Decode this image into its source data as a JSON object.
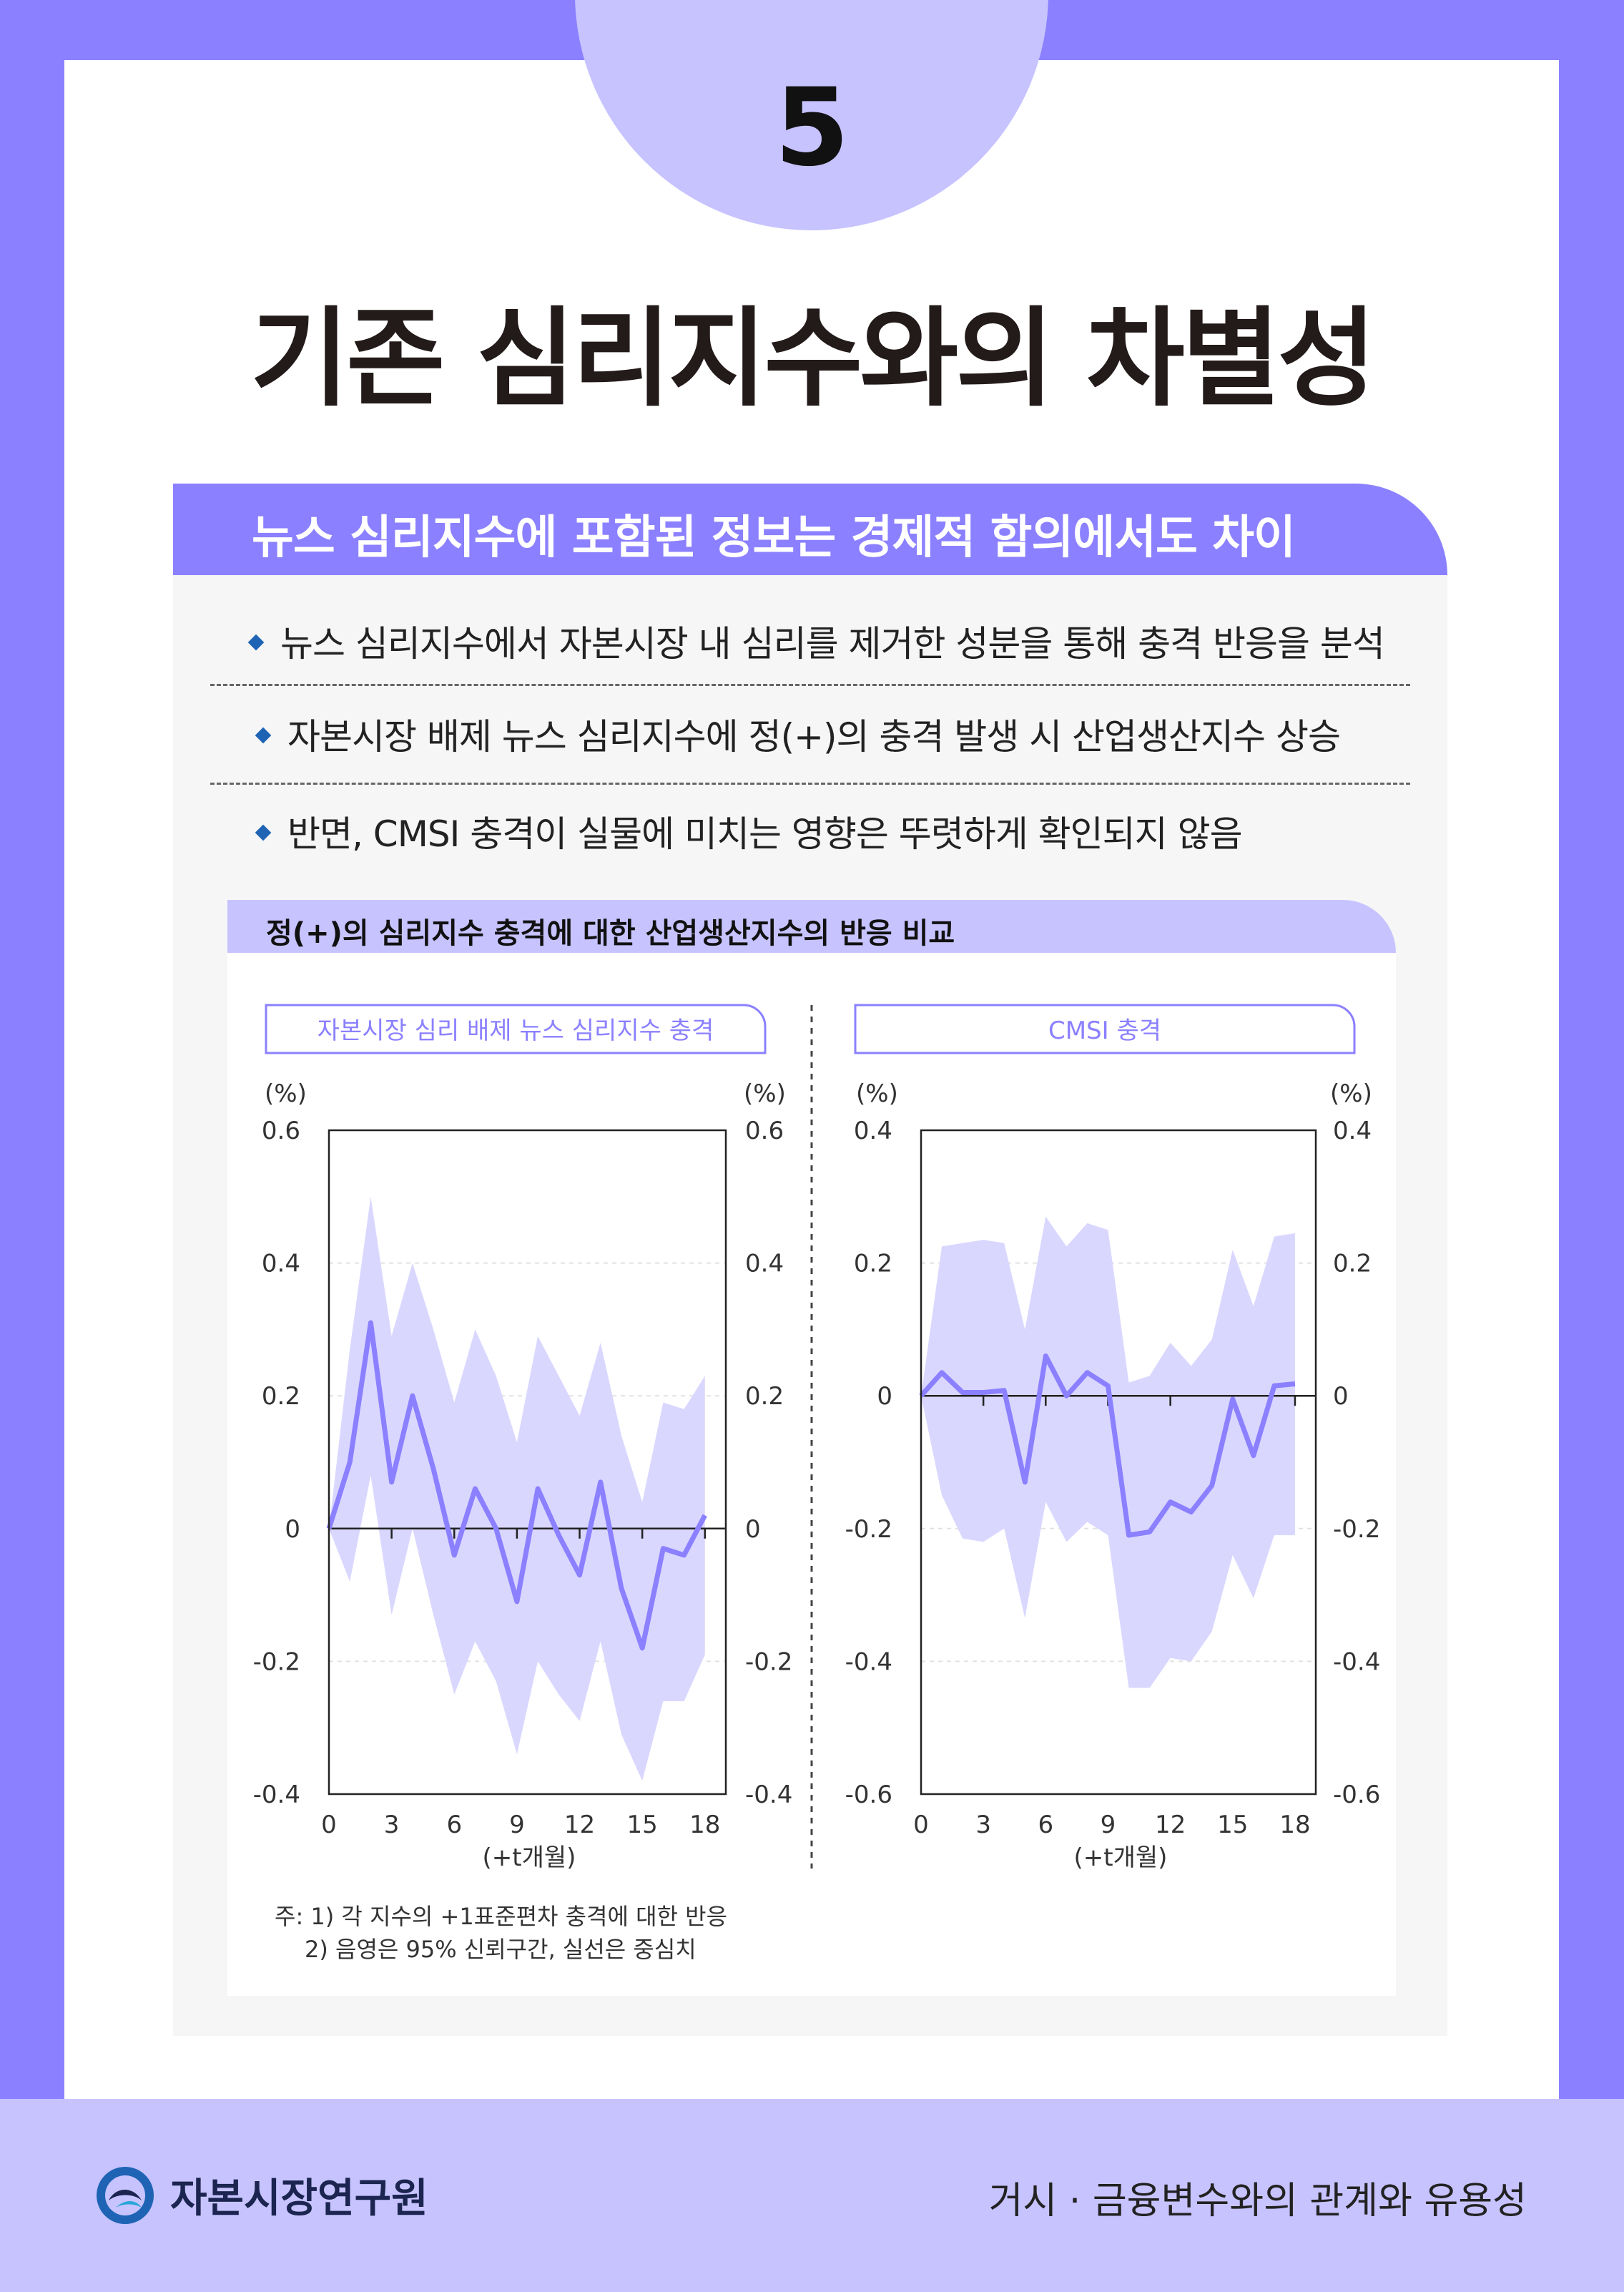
{
  "page": {
    "number": "5",
    "title": "기존 심리지수와의 차별성",
    "banner": "뉴스 심리지수에 포함된 정보는 경제적 함의에서도 차이",
    "bullets": [
      "뉴스 심리지수에서 자본시장 내 심리를 제거한 성분을 통해 충격 반응을 분석",
      "자본시장 배제 뉴스 심리지수에 정(+)의 충격 발생 시 산업생산지수 상승",
      "반면, CMSI 충격이 실물에 미치는 영향은 뚜렷하게 확인되지 않음"
    ],
    "chart_heading": "정(+)의 심리지수 충격에 대한 산업생산지수의 반응 비교",
    "notes": [
      "주: 1) 각 지수의 +1표준편차 충격에 대한 반응",
      "2) 음영은 95% 신뢰구간, 실선은 중심치"
    ]
  },
  "footer": {
    "org": "자본시장연구원",
    "series_title": "거시 · 금융변수와의 관계와 유용성"
  },
  "colors": {
    "frame": "#8b80ff",
    "light": "#c7c3ff",
    "band": "#d8d5ff",
    "line": "#8b80ff",
    "bullet": "#1f64b4"
  },
  "chart_data": [
    {
      "type": "line",
      "title": "자본시장 심리 배제 뉴스 심리지수 충격",
      "xlabel": "(+t개월)",
      "ylabel_left": "(%)",
      "ylabel_right": "(%)",
      "xlim": [
        0,
        19
      ],
      "ylim": [
        -0.4,
        0.6
      ],
      "x_ticks": [
        0,
        3,
        6,
        9,
        12,
        15,
        18
      ],
      "y_ticks": [
        -0.4,
        -0.2,
        0,
        0.2,
        0.4,
        0.6
      ],
      "y_tick_labels": [
        "-0.4",
        "-0.2",
        "0",
        "0.2",
        "0.4",
        "0.6"
      ],
      "grid": true,
      "x": [
        0,
        1,
        2,
        3,
        4,
        5,
        6,
        7,
        8,
        9,
        10,
        11,
        12,
        13,
        14,
        15,
        16,
        17,
        18
      ],
      "series": [
        {
          "role": "center",
          "values": [
            0,
            0.1,
            0.31,
            0.07,
            0.2,
            0.09,
            -0.04,
            0.06,
            0.0,
            -0.11,
            0.06,
            -0.01,
            -0.07,
            0.07,
            -0.09,
            -0.18,
            -0.03,
            -0.04,
            0.02
          ]
        },
        {
          "role": "upper",
          "values": [
            0,
            0.27,
            0.5,
            0.29,
            0.4,
            0.3,
            0.19,
            0.3,
            0.23,
            0.13,
            0.29,
            0.23,
            0.17,
            0.28,
            0.14,
            0.04,
            0.19,
            0.18,
            0.23
          ]
        },
        {
          "role": "lower",
          "values": [
            0,
            -0.08,
            0.08,
            -0.13,
            0.0,
            -0.13,
            -0.25,
            -0.17,
            -0.23,
            -0.34,
            -0.2,
            -0.25,
            -0.29,
            -0.17,
            -0.31,
            -0.38,
            -0.26,
            -0.26,
            -0.19
          ]
        }
      ]
    },
    {
      "type": "line",
      "title": "CMSI 충격",
      "xlabel": "(+t개월)",
      "ylabel_left": "(%)",
      "ylabel_right": "(%)",
      "xlim": [
        0,
        19
      ],
      "ylim": [
        -0.6,
        0.4
      ],
      "x_ticks": [
        0,
        3,
        6,
        9,
        12,
        15,
        18
      ],
      "y_ticks": [
        -0.6,
        -0.4,
        -0.2,
        0,
        0.2,
        0.4
      ],
      "y_tick_labels": [
        "-0.6",
        "-0.4",
        "-0.2",
        "0",
        "0.2",
        "0.4"
      ],
      "grid": true,
      "x": [
        0,
        1,
        2,
        3,
        4,
        5,
        6,
        7,
        8,
        9,
        10,
        11,
        12,
        13,
        14,
        15,
        16,
        17,
        18
      ],
      "series": [
        {
          "role": "center",
          "values": [
            0,
            0.035,
            0.005,
            0.005,
            0.008,
            -0.13,
            0.06,
            0.0,
            0.035,
            0.015,
            -0.21,
            -0.205,
            -0.16,
            -0.175,
            -0.135,
            -0.005,
            -0.09,
            0.015,
            0.018
          ]
        },
        {
          "role": "upper",
          "values": [
            0,
            0.225,
            0.23,
            0.235,
            0.23,
            0.1,
            0.27,
            0.225,
            0.26,
            0.25,
            0.02,
            0.03,
            0.08,
            0.045,
            0.085,
            0.22,
            0.135,
            0.24,
            0.245
          ]
        },
        {
          "role": "lower",
          "values": [
            0,
            -0.15,
            -0.215,
            -0.22,
            -0.2,
            -0.335,
            -0.16,
            -0.22,
            -0.19,
            -0.21,
            -0.44,
            -0.44,
            -0.395,
            -0.4,
            -0.355,
            -0.24,
            -0.305,
            -0.21,
            -0.21
          ]
        }
      ]
    }
  ]
}
